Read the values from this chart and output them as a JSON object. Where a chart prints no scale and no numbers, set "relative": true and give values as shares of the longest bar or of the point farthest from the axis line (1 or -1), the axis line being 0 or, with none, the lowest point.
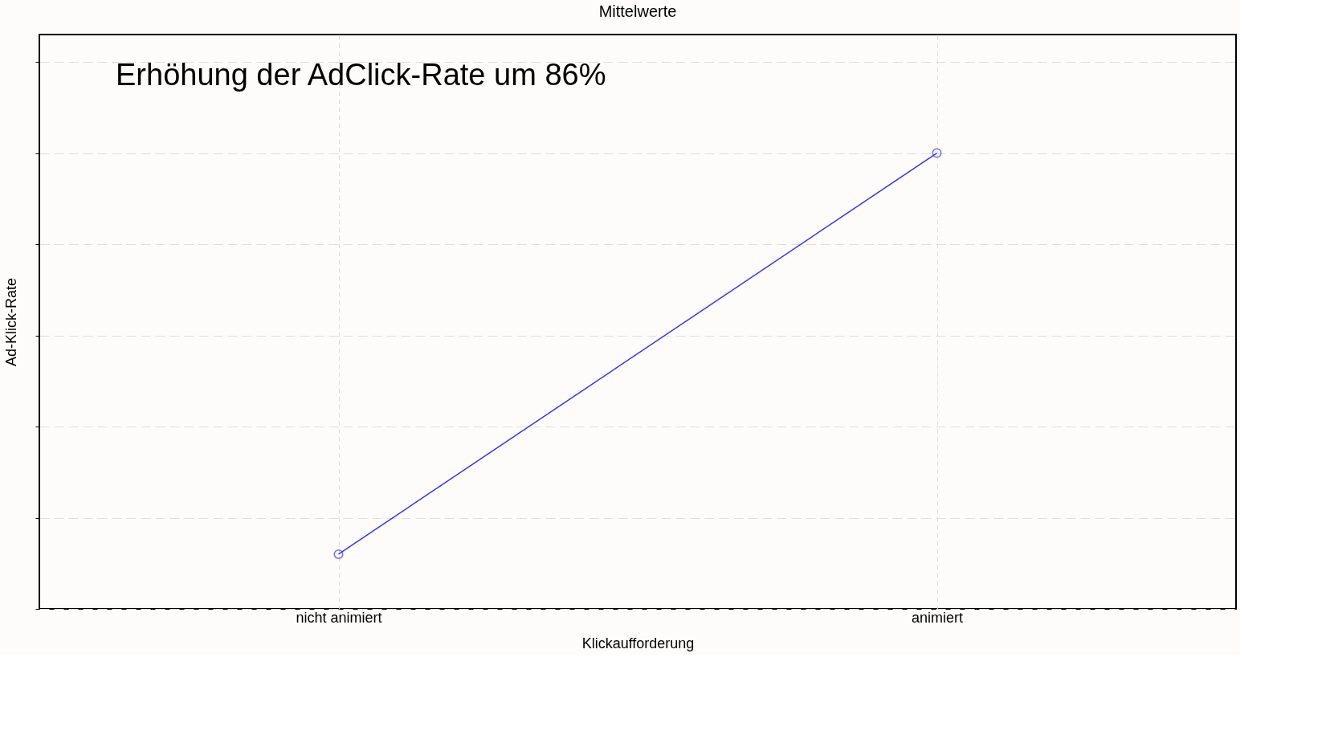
{
  "chart_data": {
    "type": "line",
    "title": "Mittelwerte",
    "xlabel": "Klickaufforderung",
    "ylabel": "Ad-Klick-Rate",
    "categories": [
      "nicht animiert",
      "animiert"
    ],
    "series": [
      {
        "color": "#3333ff",
        "values": [
          0.12,
          1
        ]
      }
    ],
    "relative": true,
    "marker": "circle",
    "line_style": "solid",
    "grid": true,
    "annotations": [
      "Erhöhung der AdClick-Rate um 86%"
    ]
  }
}
